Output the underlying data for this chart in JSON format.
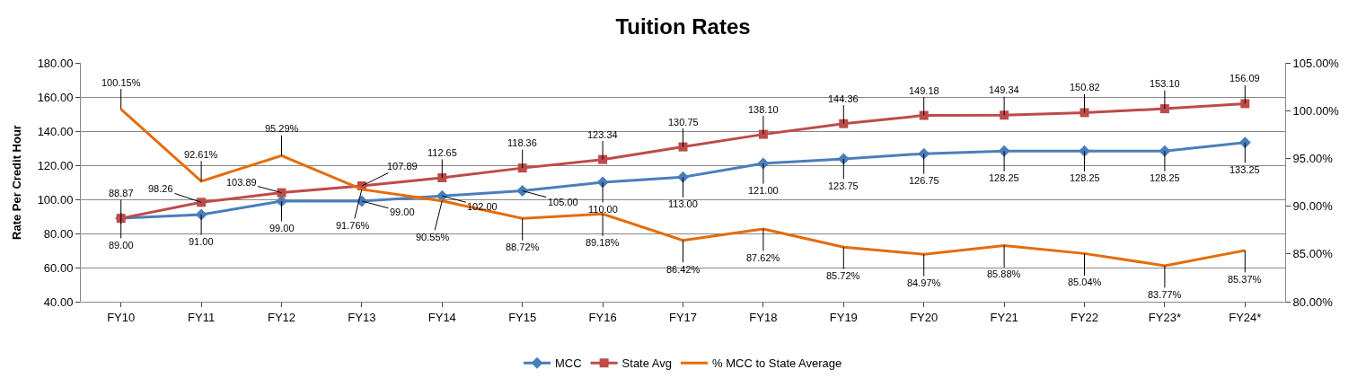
{
  "chart_data": {
    "type": "line",
    "title": "Tuition Rates",
    "ylabel": "Rate Per Credit Hour",
    "categories": [
      "FY10",
      "FY11",
      "FY12",
      "FY13",
      "FY14",
      "FY15",
      "FY16",
      "FY17",
      "FY18",
      "FY19",
      "FY20",
      "FY21",
      "FY22",
      "FY23*",
      "FY24*"
    ],
    "series": [
      {
        "name": "MCC",
        "color": "#4a7ebb",
        "marker": "diamond",
        "values": [
          89,
          91,
          99,
          99,
          102,
          105,
          110,
          113,
          121,
          123.75,
          126.75,
          128.25,
          128.25,
          128.25,
          133.25
        ],
        "value_labels": [
          "89.00",
          "91.00",
          "99.00",
          "99.00",
          "102.00",
          "105.00",
          "110.00",
          "113.00",
          "121.00",
          "123.75",
          "126.75",
          "128.25",
          "128.25",
          "128.25",
          "133.25"
        ]
      },
      {
        "name": "State Avg",
        "color": "#be4b48",
        "marker": "square",
        "values": [
          88.87,
          98.26,
          103.89,
          107.89,
          112.65,
          118.36,
          123.34,
          130.75,
          138.1,
          144.36,
          149.18,
          149.34,
          150.82,
          153.1,
          156.09
        ],
        "value_labels": [
          "88.87",
          "98.26",
          "103.89",
          "107.89",
          "112.65",
          "118.36",
          "123.34",
          "130.75",
          "138.10",
          "144.36",
          "149.18",
          "149.34",
          "150.82",
          "153.10",
          "156.09"
        ]
      },
      {
        "name": "% MCC to State Average",
        "color": "#e46c0a",
        "marker": "none",
        "axis": "y2",
        "values": [
          100.15,
          92.61,
          95.29,
          91.76,
          90.55,
          88.72,
          89.18,
          86.42,
          87.62,
          85.72,
          84.97,
          85.88,
          85.04,
          83.77,
          85.37
        ],
        "value_labels": [
          "100.15%",
          "92.61%",
          "95.29%",
          "91.76%",
          "90.55%",
          "88.72%",
          "89.18%",
          "86.42%",
          "87.62%",
          "85.72%",
          "84.97%",
          "85.88%",
          "85.04%",
          "83.77%",
          "85.37%"
        ]
      }
    ],
    "ylim": [
      40,
      180
    ],
    "yticks": [
      {
        "value": 40,
        "label": "40.00"
      },
      {
        "value": 60,
        "label": "60.00"
      },
      {
        "value": 80,
        "label": "80.00"
      },
      {
        "value": 100,
        "label": "100.00"
      },
      {
        "value": 120,
        "label": "120.00"
      },
      {
        "value": 140,
        "label": "140.00"
      },
      {
        "value": 160,
        "label": "160.00"
      },
      {
        "value": 180,
        "label": "180.00"
      }
    ],
    "y2lim": [
      80,
      105
    ],
    "y2ticks": [
      {
        "value": 80,
        "label": "80.00%"
      },
      {
        "value": 85,
        "label": "85.00%"
      },
      {
        "value": 90,
        "label": "90.00%"
      },
      {
        "value": 95,
        "label": "95.00%"
      },
      {
        "value": 100,
        "label": "100.00%"
      },
      {
        "value": 105,
        "label": "105.00%"
      }
    ],
    "grid": "y",
    "legend": "bottom",
    "line_style": "solid"
  }
}
